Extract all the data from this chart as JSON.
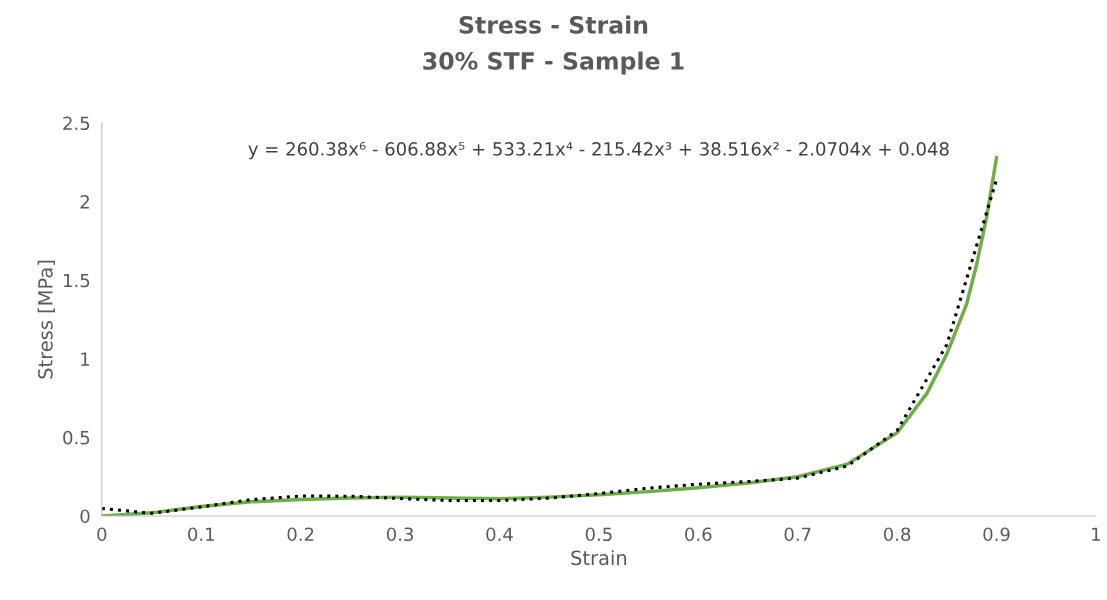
{
  "chart_data": {
    "type": "line",
    "title": "Stress - Strain",
    "subtitle": "30% STF - Sample 1",
    "xlabel": "Strain",
    "ylabel": "Stress [MPa]",
    "xlim": [
      0,
      1
    ],
    "xticks": [
      0,
      0.1,
      0.2,
      0.3,
      0.4,
      0.5,
      0.6,
      0.7,
      0.8,
      0.9,
      1
    ],
    "ylim": [
      0,
      2.5
    ],
    "yticks": [
      0,
      0.5,
      1,
      1.5,
      2,
      2.5
    ],
    "grid": false,
    "legend": false,
    "annotations": [
      "y = 260.38x⁶ - 606.88x⁵ + 533.21x⁴ - 215.42x³ + 38.516x² - 2.0704x + 0.048"
    ],
    "series": [
      {
        "color": "#70ad47",
        "line_style": "solid",
        "x": [
          0,
          0.05,
          0.1,
          0.15,
          0.2,
          0.25,
          0.3,
          0.35,
          0.4,
          0.45,
          0.5,
          0.55,
          0.6,
          0.65,
          0.7,
          0.75,
          0.8,
          0.83,
          0.85,
          0.87,
          0.88,
          0.89,
          0.9
        ],
        "values": [
          0,
          0.02,
          0.06,
          0.09,
          0.105,
          0.115,
          0.12,
          0.115,
          0.11,
          0.12,
          0.135,
          0.155,
          0.18,
          0.21,
          0.25,
          0.33,
          0.53,
          0.78,
          1.03,
          1.35,
          1.6,
          1.9,
          2.28
        ]
      },
      {
        "color": "#000000",
        "line_style": "dotted",
        "x": [
          0,
          0.05,
          0.1,
          0.15,
          0.2,
          0.25,
          0.3,
          0.35,
          0.4,
          0.45,
          0.5,
          0.55,
          0.6,
          0.65,
          0.7,
          0.75,
          0.8,
          0.85,
          0.9
        ],
        "values": [
          0.048,
          0.017,
          0.058,
          0.104,
          0.127,
          0.126,
          0.111,
          0.098,
          0.098,
          0.114,
          0.143,
          0.177,
          0.202,
          0.219,
          0.241,
          0.318,
          0.544,
          1.09,
          2.14
        ]
      }
    ]
  }
}
